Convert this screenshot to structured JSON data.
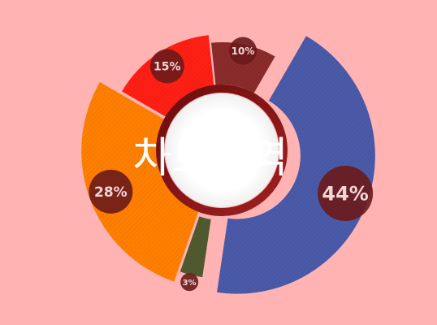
{
  "chart_data": {
    "type": "pie",
    "center_label": "차트영역",
    "slices": [
      {
        "label": "44%",
        "value": 44,
        "color": "#4a5aa8"
      },
      {
        "label": "3%",
        "value": 3,
        "color": "#4f5a2e"
      },
      {
        "label": "28%",
        "value": 28,
        "color": "#ff7f00"
      },
      {
        "label": "15%",
        "value": 15,
        "color": "#ff1f14"
      },
      {
        "label": "10%",
        "value": 10,
        "color": "#8b2b2b"
      }
    ],
    "label_badge_color": "#6b1a1a",
    "legend": "none"
  }
}
